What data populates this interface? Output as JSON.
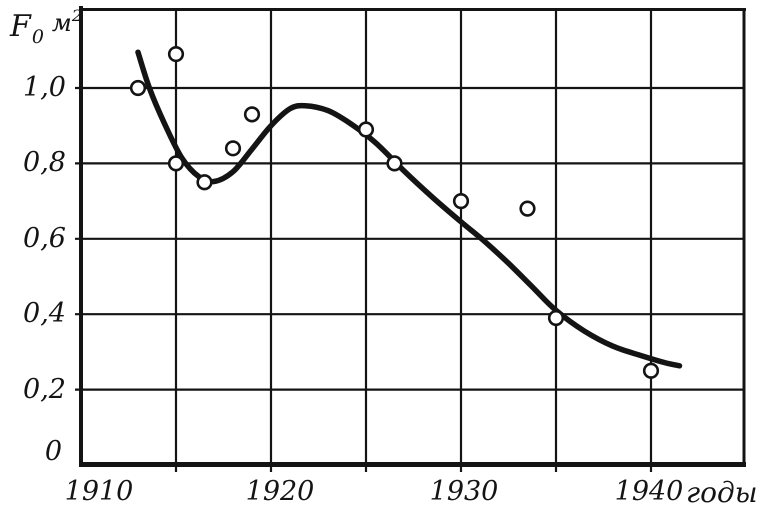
{
  "figure": {
    "background": "#ffffff",
    "ink_color": "#141414",
    "axis_title": {
      "symbol": "F",
      "subscript": "0",
      "unit": "м",
      "unit_exponent": "2"
    }
  },
  "chart_data": {
    "type": "scatter",
    "title": "",
    "xlabel": "годы",
    "ylabel": "F₀ м²",
    "grid": true,
    "x_axis": {
      "unit_label": "годы",
      "tick_years": [
        1910,
        1920,
        1930,
        1940
      ],
      "tick_labels": [
        "1910",
        "1920",
        "1930",
        "1940"
      ],
      "range": [
        1910,
        1945
      ],
      "gridline_step_years": 5
    },
    "y_axis": {
      "tick_values": [
        1.0,
        0.8,
        0.6,
        0.4,
        0.2,
        0
      ],
      "tick_labels": [
        "1,0",
        "0,8",
        "0,6",
        "0,4",
        "0,2",
        "0"
      ],
      "range": [
        0,
        1.2
      ],
      "gridline_step": 0.2
    },
    "points": [
      {
        "year": 1913,
        "value": 1.0
      },
      {
        "year": 1915,
        "value": 1.09
      },
      {
        "year": 1915,
        "value": 0.8
      },
      {
        "year": 1916.5,
        "value": 0.75
      },
      {
        "year": 1918,
        "value": 0.84
      },
      {
        "year": 1919,
        "value": 0.93
      },
      {
        "year": 1925,
        "value": 0.89
      },
      {
        "year": 1926.5,
        "value": 0.8
      },
      {
        "year": 1930,
        "value": 0.7
      },
      {
        "year": 1933.5,
        "value": 0.68
      },
      {
        "year": 1935,
        "value": 0.39
      },
      {
        "year": 1940,
        "value": 0.25
      }
    ],
    "trend_curve": [
      [
        1913.0,
        1.095
      ],
      [
        1913.6,
        1.0
      ],
      [
        1914.4,
        0.905
      ],
      [
        1915.3,
        0.815
      ],
      [
        1916.2,
        0.765
      ],
      [
        1917.0,
        0.752
      ],
      [
        1918.0,
        0.778
      ],
      [
        1919.0,
        0.838
      ],
      [
        1920.0,
        0.9
      ],
      [
        1921.0,
        0.945
      ],
      [
        1921.8,
        0.953
      ],
      [
        1923.0,
        0.94
      ],
      [
        1924.2,
        0.905
      ],
      [
        1925.5,
        0.855
      ],
      [
        1927.0,
        0.78
      ],
      [
        1928.5,
        0.71
      ],
      [
        1930.0,
        0.645
      ],
      [
        1931.2,
        0.595
      ],
      [
        1932.5,
        0.535
      ],
      [
        1933.8,
        0.47
      ],
      [
        1935.0,
        0.41
      ],
      [
        1936.5,
        0.355
      ],
      [
        1938.0,
        0.315
      ],
      [
        1939.5,
        0.29
      ],
      [
        1940.7,
        0.272
      ],
      [
        1941.5,
        0.263
      ]
    ]
  }
}
